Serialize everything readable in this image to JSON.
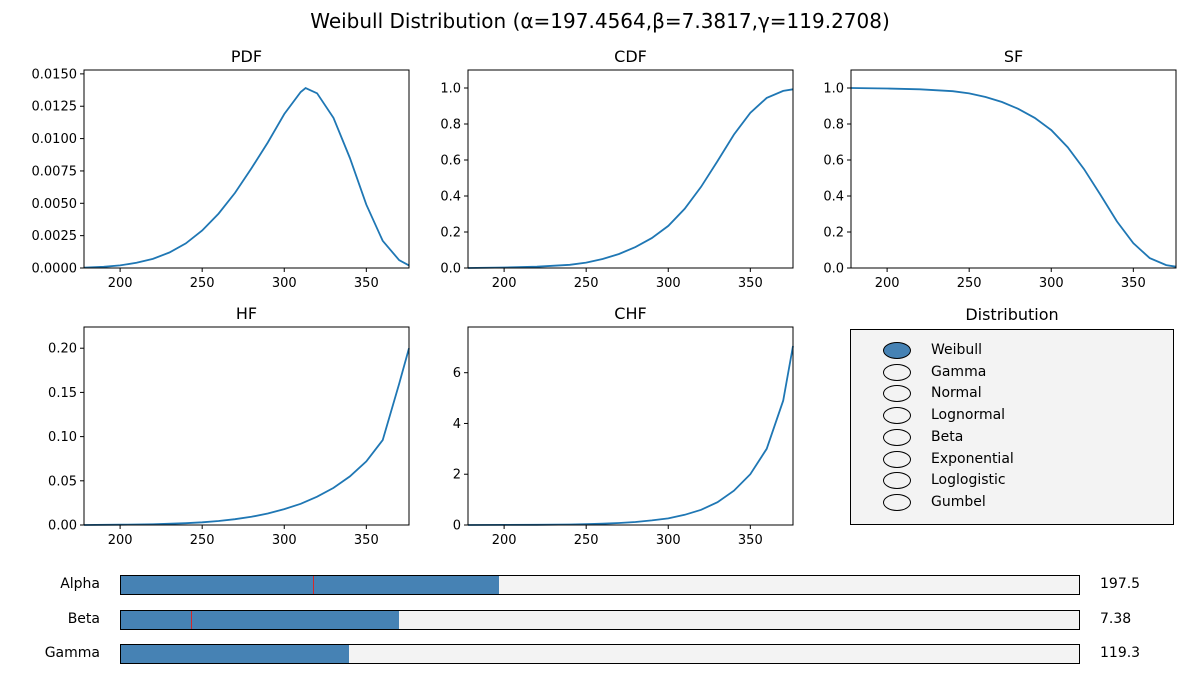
{
  "suptitle": "Weibull Distribution (α=197.4564,β=7.3817,γ=119.2708)",
  "colors": {
    "line": "#1f77b4",
    "accent": "#4682b4",
    "marker": "#d62728",
    "panel": "#f3f3f3"
  },
  "chart_data": [
    {
      "type": "line",
      "title": "PDF",
      "xlabel": "",
      "ylabel": "",
      "xlim": [
        178,
        376
      ],
      "ylim": [
        0,
        0.0153
      ],
      "grid": false,
      "x_ticks": [
        200,
        250,
        300,
        350
      ],
      "y_ticks": [
        0.0,
        0.0025,
        0.005,
        0.0075,
        0.01,
        0.0125,
        0.015
      ],
      "y_tick_labels": [
        "0.0000",
        "0.0025",
        "0.0050",
        "0.0075",
        "0.0100",
        "0.0125",
        "0.0150"
      ],
      "x": [
        178,
        190,
        200,
        210,
        220,
        230,
        240,
        250,
        260,
        270,
        280,
        290,
        300,
        310,
        313,
        320,
        330,
        340,
        350,
        360,
        370,
        376
      ],
      "y": [
        3e-05,
        9e-05,
        0.0002,
        0.0004,
        0.0007,
        0.0012,
        0.0019,
        0.0029,
        0.0042,
        0.0058,
        0.0077,
        0.0097,
        0.0119,
        0.0136,
        0.0139,
        0.0135,
        0.0116,
        0.0085,
        0.0049,
        0.0021,
        0.0006,
        0.0002
      ]
    },
    {
      "type": "line",
      "title": "CDF",
      "xlabel": "",
      "ylabel": "",
      "xlim": [
        178,
        376
      ],
      "ylim": [
        0,
        1.1
      ],
      "grid": false,
      "x_ticks": [
        200,
        250,
        300,
        350
      ],
      "y_ticks": [
        0.0,
        0.2,
        0.4,
        0.6,
        0.8,
        1.0
      ],
      "y_tick_labels": [
        "0.0",
        "0.2",
        "0.4",
        "0.6",
        "0.8",
        "1.0"
      ],
      "x": [
        178,
        200,
        220,
        240,
        250,
        260,
        270,
        280,
        290,
        300,
        310,
        320,
        330,
        340,
        350,
        360,
        370,
        376
      ],
      "y": [
        0.0,
        0.003,
        0.007,
        0.018,
        0.03,
        0.05,
        0.078,
        0.116,
        0.166,
        0.234,
        0.329,
        0.451,
        0.594,
        0.741,
        0.862,
        0.945,
        0.984,
        0.993
      ]
    },
    {
      "type": "line",
      "title": "SF",
      "xlabel": "",
      "ylabel": "",
      "xlim": [
        178,
        376
      ],
      "ylim": [
        0,
        1.1
      ],
      "grid": false,
      "x_ticks": [
        200,
        250,
        300,
        350
      ],
      "y_ticks": [
        0.0,
        0.2,
        0.4,
        0.6,
        0.8,
        1.0
      ],
      "y_tick_labels": [
        "0.0",
        "0.2",
        "0.4",
        "0.6",
        "0.8",
        "1.0"
      ],
      "x": [
        178,
        200,
        220,
        240,
        250,
        260,
        270,
        280,
        290,
        300,
        310,
        320,
        330,
        340,
        350,
        360,
        370,
        376
      ],
      "y": [
        1.0,
        0.997,
        0.993,
        0.982,
        0.97,
        0.95,
        0.922,
        0.884,
        0.834,
        0.766,
        0.671,
        0.549,
        0.406,
        0.259,
        0.138,
        0.055,
        0.016,
        0.007
      ]
    },
    {
      "type": "line",
      "title": "HF",
      "xlabel": "",
      "ylabel": "",
      "xlim": [
        178,
        376
      ],
      "ylim": [
        0,
        0.224
      ],
      "grid": false,
      "x_ticks": [
        200,
        250,
        300,
        350
      ],
      "y_ticks": [
        0.0,
        0.05,
        0.1,
        0.15,
        0.2
      ],
      "y_tick_labels": [
        "0.00",
        "0.05",
        "0.10",
        "0.15",
        "0.20"
      ],
      "x": [
        178,
        200,
        220,
        240,
        250,
        260,
        270,
        280,
        290,
        300,
        310,
        320,
        330,
        340,
        350,
        360,
        370,
        376
      ],
      "y": [
        0.0,
        0.0003,
        0.0008,
        0.002,
        0.003,
        0.0045,
        0.0066,
        0.0093,
        0.013,
        0.018,
        0.024,
        0.032,
        0.042,
        0.055,
        0.072,
        0.096,
        0.16,
        0.2
      ]
    },
    {
      "type": "line",
      "title": "CHF",
      "xlabel": "",
      "ylabel": "",
      "xlim": [
        178,
        376
      ],
      "ylim": [
        0,
        7.8
      ],
      "grid": false,
      "x_ticks": [
        200,
        250,
        300,
        350
      ],
      "y_ticks": [
        0,
        2,
        4,
        6
      ],
      "y_tick_labels": [
        "0",
        "2",
        "4",
        "6"
      ],
      "x": [
        178,
        200,
        220,
        240,
        250,
        260,
        270,
        280,
        290,
        300,
        310,
        320,
        330,
        340,
        350,
        360,
        370,
        376
      ],
      "y": [
        0.0,
        0.003,
        0.007,
        0.018,
        0.03,
        0.05,
        0.08,
        0.12,
        0.18,
        0.26,
        0.4,
        0.6,
        0.9,
        1.35,
        2.0,
        3.0,
        4.9,
        7.05
      ]
    }
  ],
  "radio": {
    "title": "Distribution",
    "options": [
      "Weibull",
      "Gamma",
      "Normal",
      "Lognormal",
      "Beta",
      "Exponential",
      "Loglogistic",
      "Gumbel"
    ],
    "selected": "Weibull"
  },
  "sliders": [
    {
      "label": "Alpha",
      "value_text": "197.5",
      "fill_fraction": 0.395,
      "marker_fraction": 0.2
    },
    {
      "label": "Beta",
      "value_text": "7.38",
      "fill_fraction": 0.29,
      "marker_fraction": 0.073
    },
    {
      "label": "Gamma",
      "value_text": "119.3",
      "fill_fraction": 0.238,
      "marker_fraction": null
    }
  ]
}
